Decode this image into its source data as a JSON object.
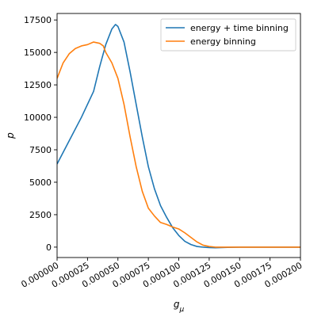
{
  "chart_data": {
    "type": "line",
    "title": "",
    "xlabel": "g",
    "xlabel_sub": "μ",
    "ylabel": "p",
    "xlim": [
      0,
      0.0002
    ],
    "ylim": [
      -800,
      18000
    ],
    "xticks": [
      0,
      2.5e-05,
      5e-05,
      7.5e-05,
      0.0001,
      0.000125,
      0.00015,
      0.000175,
      0.0002
    ],
    "xtick_labels": [
      "0.000000",
      "0.000025",
      "0.000050",
      "0.000075",
      "0.000100",
      "0.000125",
      "0.000150",
      "0.000175",
      "0.000200"
    ],
    "yticks": [
      0,
      2500,
      5000,
      7500,
      10000,
      12500,
      15000,
      17500
    ],
    "ytick_labels": [
      "0",
      "2500",
      "5000",
      "7500",
      "10000",
      "12500",
      "15000",
      "17500"
    ],
    "grid": false,
    "legend_position": "top-right",
    "series": [
      {
        "name": "energy + time binning",
        "color": "#1f77b4",
        "x": [
          0,
          1e-05,
          2e-05,
          3e-05,
          3.5e-05,
          4e-05,
          4.5e-05,
          4.8e-05,
          5e-05,
          5.5e-05,
          6e-05,
          6.5e-05,
          7e-05,
          7.5e-05,
          8e-05,
          8.5e-05,
          9e-05,
          9.5e-05,
          0.0001,
          0.000105,
          0.00011,
          0.000115,
          0.00012,
          0.000125,
          0.00013,
          0.00014,
          0.00015,
          0.00016,
          0.00018,
          0.0002
        ],
        "y": [
          6400,
          8200,
          10000,
          12000,
          13900,
          15600,
          16800,
          17150,
          17000,
          15800,
          13500,
          11000,
          8500,
          6200,
          4500,
          3200,
          2300,
          1500,
          900,
          450,
          200,
          50,
          0,
          -30,
          -50,
          -20,
          0,
          0,
          0,
          0
        ]
      },
      {
        "name": "energy binning",
        "color": "#ff7f0e",
        "x": [
          0,
          5e-06,
          1e-05,
          1.5e-05,
          2e-05,
          2.5e-05,
          3e-05,
          3.5e-05,
          3.8e-05,
          4e-05,
          4.5e-05,
          5e-05,
          5.5e-05,
          6e-05,
          6.5e-05,
          7e-05,
          7.5e-05,
          8e-05,
          8.5e-05,
          9e-05,
          9.5e-05,
          0.0001,
          0.000105,
          0.00011,
          0.000115,
          0.00012,
          0.000125,
          0.00013,
          0.00014,
          0.00015,
          0.00016,
          0.00018,
          0.0002
        ],
        "y": [
          13000,
          14200,
          14900,
          15300,
          15500,
          15600,
          15800,
          15700,
          15500,
          15000,
          14200,
          13000,
          11000,
          8500,
          6200,
          4300,
          3000,
          2400,
          1900,
          1750,
          1550,
          1400,
          1100,
          750,
          400,
          150,
          50,
          0,
          0,
          0,
          0,
          0,
          0
        ]
      }
    ]
  }
}
